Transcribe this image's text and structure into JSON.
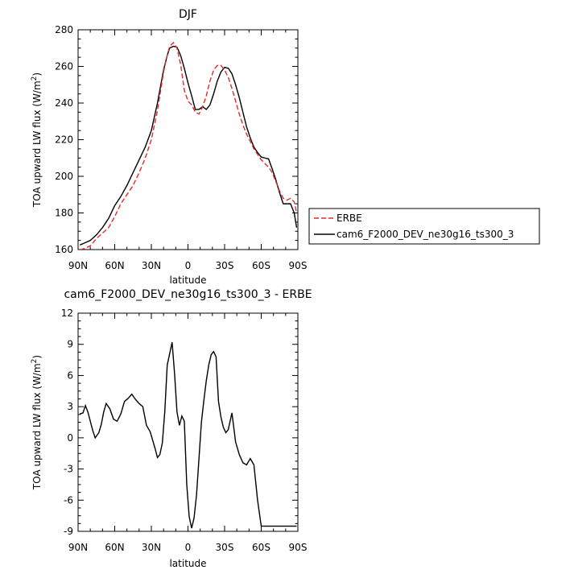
{
  "chart_data": [
    {
      "type": "line",
      "title": "DJF",
      "xlabel": "latitude",
      "ylabel": "TOA upward LW flux (W/m",
      "ylabel_sup": "2",
      "ylabel_close": ")",
      "xlim": [
        -90,
        90
      ],
      "ylim": [
        160,
        280
      ],
      "xticks": [
        -90,
        -60,
        -30,
        0,
        30,
        60,
        90
      ],
      "xtick_labels": [
        "90N",
        "60N",
        "30N",
        "0",
        "30S",
        "60S",
        "90S"
      ],
      "yticks": [
        160,
        180,
        200,
        220,
        240,
        260,
        280
      ],
      "ytick_labels": [
        "160",
        "180",
        "200",
        "220",
        "240",
        "260",
        "280"
      ],
      "legend_position": "right",
      "series": [
        {
          "name": "ERBE",
          "color": "#e8282a",
          "dash": "dashed",
          "x": [
            -88.5,
            -85,
            -80,
            -75,
            -70,
            -65,
            -60,
            -55,
            -50,
            -45,
            -40,
            -35,
            -30,
            -25,
            -20,
            -17,
            -15,
            -12,
            -9,
            -6,
            -3,
            0,
            3,
            6,
            9,
            12,
            15,
            18,
            21,
            24,
            27,
            30,
            33,
            36,
            39,
            42,
            45,
            48,
            51,
            54,
            57,
            60,
            63,
            66,
            69,
            72,
            75,
            78,
            81,
            84,
            87,
            89
          ],
          "y": [
            160,
            160.5,
            162,
            166,
            169,
            172,
            178,
            185,
            190,
            195,
            202,
            210,
            220,
            236,
            257,
            266,
            271,
            273,
            270,
            261,
            247,
            241,
            239,
            235,
            234,
            238,
            244,
            252,
            258,
            260.5,
            260.5,
            258,
            254,
            248,
            241,
            234,
            228,
            223,
            219,
            215,
            212,
            209,
            207,
            205,
            202,
            197,
            192,
            188,
            187,
            188,
            186,
            180
          ]
        },
        {
          "name": "cam6_F2000_DEV_ne30g16_ts300_3",
          "color": "#000000",
          "dash": "solid",
          "x": [
            -88.5,
            -85,
            -80,
            -75,
            -70,
            -65,
            -60,
            -55,
            -50,
            -45,
            -40,
            -35,
            -30,
            -25,
            -20,
            -17,
            -15,
            -12,
            -9,
            -6,
            -3,
            0,
            3,
            6,
            9,
            12,
            15,
            18,
            21,
            24,
            27,
            30,
            33,
            36,
            39,
            42,
            45,
            48,
            51,
            54,
            57,
            60,
            63,
            66,
            69,
            72,
            75,
            78,
            81,
            84,
            87,
            89
          ],
          "y": [
            162.5,
            163.5,
            165,
            168,
            172,
            177,
            184,
            189,
            195,
            202,
            209,
            216,
            225,
            240,
            258,
            266,
            270,
            271,
            270.5,
            266,
            259,
            251,
            244,
            236.5,
            236.5,
            238,
            236.5,
            239,
            245,
            252,
            257,
            259.5,
            259,
            256,
            250,
            243,
            235,
            227,
            221,
            216,
            213,
            210.5,
            210,
            209.5,
            204,
            198,
            191,
            185,
            185,
            185,
            180,
            172
          ]
        }
      ]
    },
    {
      "type": "line",
      "title": "cam6_F2000_DEV_ne30g16_ts300_3 - ERBE",
      "xlabel": "latitude",
      "ylabel": "TOA upward LW flux (W/m",
      "ylabel_sup": "2",
      "ylabel_close": ")",
      "xlim": [
        -90,
        90
      ],
      "ylim": [
        -9,
        12
      ],
      "xticks": [
        -90,
        -60,
        -30,
        0,
        30,
        60,
        90
      ],
      "xtick_labels": [
        "90N",
        "60N",
        "30N",
        "0",
        "30S",
        "60S",
        "90S"
      ],
      "yticks": [
        -9,
        -6,
        -3,
        0,
        3,
        6,
        9,
        12
      ],
      "ytick_labels": [
        "-9",
        "-6",
        "-3",
        "0",
        "3",
        "6",
        "9",
        "12"
      ],
      "series": [
        {
          "color": "#000000",
          "dash": "solid",
          "x": [
            -88.5,
            -86,
            -84,
            -82,
            -80,
            -78,
            -76,
            -73,
            -71,
            -69,
            -67,
            -64,
            -61,
            -58,
            -55,
            -52,
            -49,
            -46,
            -43,
            -40,
            -37,
            -34,
            -31,
            -29,
            -27,
            -25,
            -23,
            -21,
            -19,
            -17,
            -15,
            -13,
            -11,
            -9,
            -7,
            -5,
            -3,
            -1,
            1,
            3,
            5,
            7,
            9,
            11,
            13,
            15,
            17,
            19,
            21,
            23,
            25,
            27,
            29,
            31,
            33,
            36,
            39,
            42,
            45,
            48,
            51,
            54,
            57,
            60,
            63,
            66,
            67.5,
            69,
            71,
            73,
            75,
            77,
            79,
            81,
            83,
            85,
            87,
            89
          ],
          "y": [
            2.3,
            2.4,
            3.1,
            2.5,
            1.6,
            0.7,
            0,
            0.5,
            1.3,
            2.5,
            3.3,
            2.8,
            1.8,
            1.6,
            2.3,
            3.5,
            3.8,
            4.2,
            3.7,
            3.3,
            3.0,
            1.2,
            0.6,
            -0.2,
            -1.0,
            -1.9,
            -1.6,
            -0.5,
            2.5,
            7.0,
            8.1,
            9.2,
            6.2,
            2.5,
            1.2,
            2.1,
            1.6,
            -4.5,
            -7.6,
            -8.7,
            -7.7,
            -5.5,
            -2.0,
            1.5,
            3.6,
            5.5,
            7.0,
            8.0,
            8.3,
            7.8,
            3.5,
            2.0,
            1.0,
            0.5,
            0.8,
            2.4,
            -0.4,
            -1.6,
            -2.4,
            -2.6,
            -2.0,
            -2.6,
            -6.0,
            -8.5,
            -8.5,
            -8.5,
            -8.5,
            -8.5,
            -8.5,
            -8.5,
            -8.5,
            -8.5,
            -8.5,
            -8.5,
            -8.5,
            -8.5,
            -8.5,
            -8.5
          ]
        }
      ]
    }
  ]
}
